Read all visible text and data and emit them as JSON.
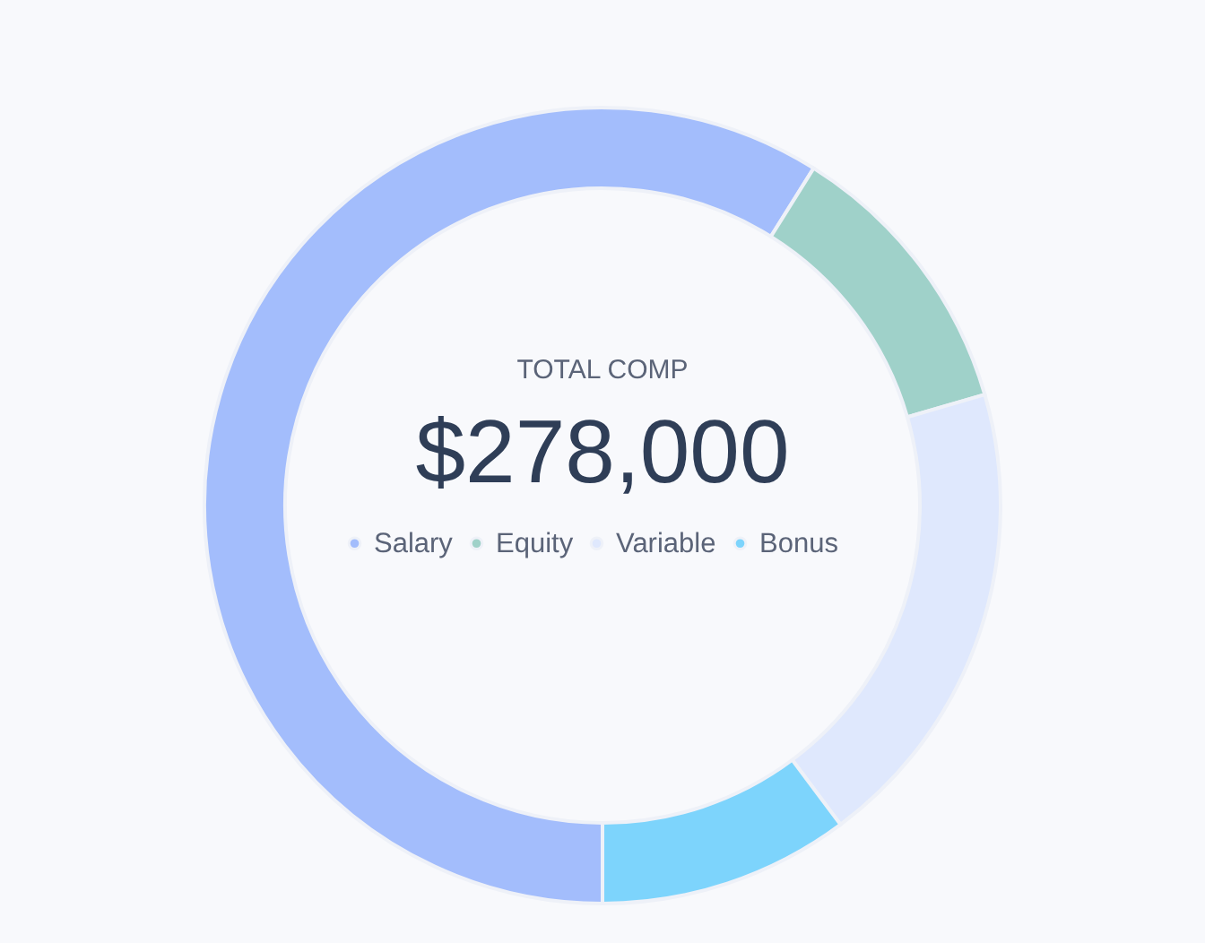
{
  "chart_data": {
    "type": "donut",
    "title": "TOTAL COMP",
    "subtitle": "$278,000",
    "categories": [
      "Salary",
      "Equity",
      "Variable",
      "Bonus"
    ],
    "values": [
      58.9,
      11.6,
      19.3,
      10.2
    ],
    "colors": [
      "#a3bdfc",
      "#9fd1c9",
      "#dfe8fd",
      "#7dd4fc"
    ],
    "legend": "bottom"
  }
}
